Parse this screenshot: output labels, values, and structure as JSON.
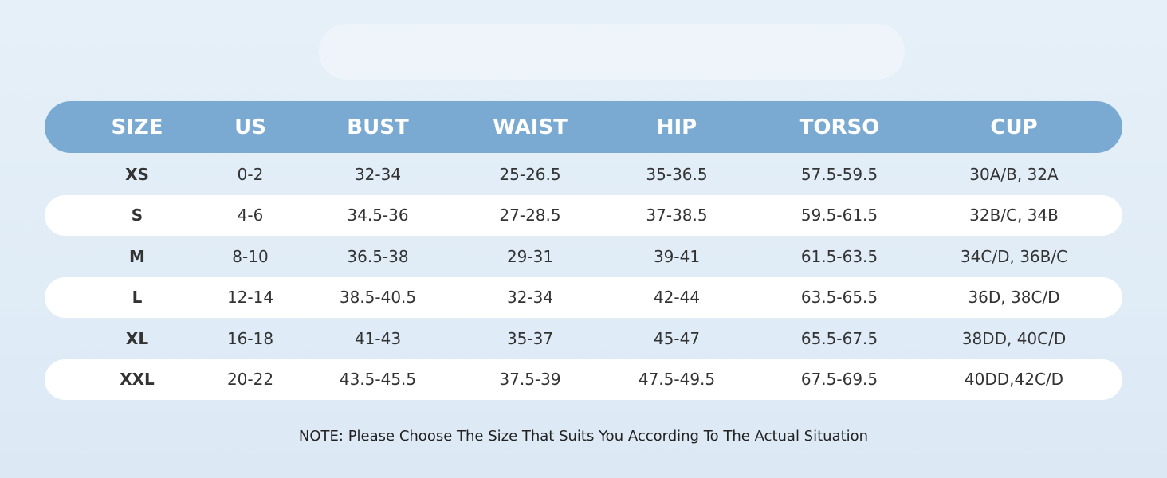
{
  "table": {
    "header": [
      "SIZE",
      "US",
      "BUST",
      "WAIST",
      "HIP",
      "TORSO",
      "CUP"
    ],
    "rows": [
      [
        "XS",
        "0-2",
        "32-34",
        "25-26.5",
        "35-36.5",
        "57.5-59.5",
        "30A/B, 32A"
      ],
      [
        "S",
        "4-6",
        "34.5-36",
        "27-28.5",
        "37-38.5",
        "59.5-61.5",
        "32B/C, 34B"
      ],
      [
        "M",
        "8-10",
        "36.5-38",
        "29-31",
        "39-41",
        "61.5-63.5",
        "34C/D, 36B/C"
      ],
      [
        "L",
        "12-14",
        "38.5-40.5",
        "32-34",
        "42-44",
        "63.5-65.5",
        "36D, 38C/D"
      ],
      [
        "XL",
        "16-18",
        "41-43",
        "35-37",
        "45-47",
        "65.5-67.5",
        "38DD, 40C/D"
      ],
      [
        "XXL",
        "20-22",
        "43.5-45.5",
        "37.5-39",
        "47.5-49.5",
        "67.5-69.5",
        "40DD,42C/D"
      ]
    ]
  },
  "note": "NOTE: Please Choose The Size That Suits You According To The Actual Situation"
}
